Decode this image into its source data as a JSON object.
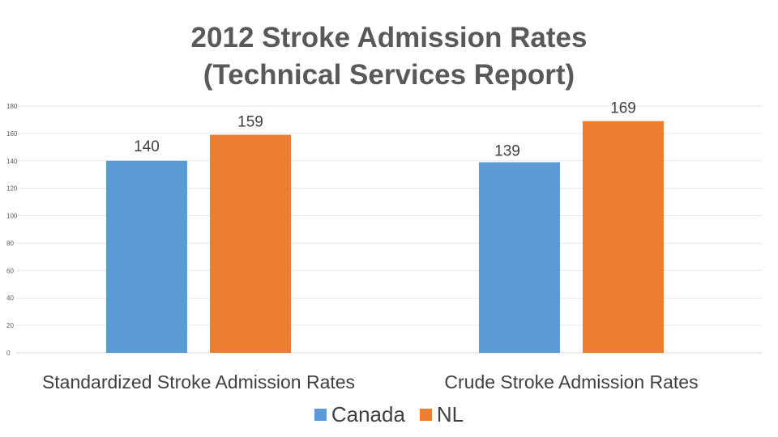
{
  "chart_data": {
    "type": "bar",
    "title_lines": [
      "2012 Stroke Admission Rates",
      "(Technical Services Report)"
    ],
    "categories": [
      "Standardized Stroke Admission Rates",
      "Crude Stroke Admission Rates"
    ],
    "series": [
      {
        "name": "Canada",
        "color": "#5b9bd5",
        "values": [
          140,
          139
        ]
      },
      {
        "name": "NL",
        "color": "#ed7d31",
        "values": [
          159,
          169
        ]
      }
    ],
    "data_labels": [
      [
        "140",
        "139"
      ],
      [
        "159",
        "169"
      ]
    ],
    "yticks": [
      0,
      20,
      40,
      60,
      80,
      100,
      120,
      140,
      160,
      180
    ],
    "ylim": [
      0,
      180
    ],
    "grid": true,
    "legend_position": "bottom"
  }
}
